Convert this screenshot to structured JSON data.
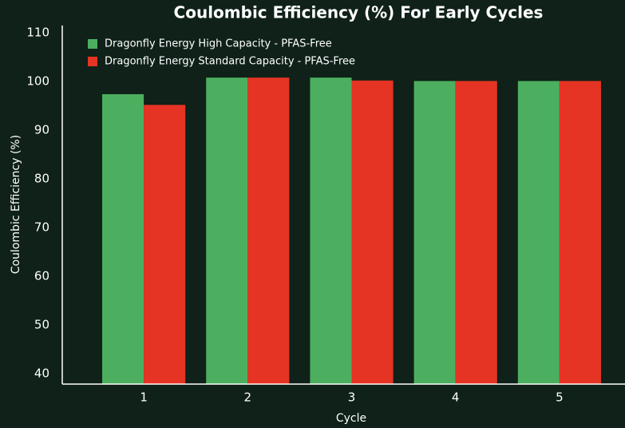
{
  "chart_data": {
    "type": "bar",
    "title": "Coulombic Efficiency (%) For Early Cycles",
    "xlabel": "Cycle",
    "ylabel": "Coulombic Efficiency (%)",
    "categories": [
      "1",
      "2",
      "3",
      "4",
      "5"
    ],
    "series": [
      {
        "name": "Dragonfly Energy High Capacity - PFAS-Free",
        "color": "#4caf5f",
        "values": [
          97.4,
          100.8,
          100.8,
          100.1,
          100.1
        ]
      },
      {
        "name": "Dragonfly Energy Standard Capacity - PFAS-Free",
        "color": "#e53424",
        "values": [
          95.2,
          100.8,
          100.2,
          100.1,
          100.1
        ]
      }
    ],
    "ylim": [
      37.9,
      111.5
    ],
    "yticks": [
      40,
      50,
      60,
      70,
      80,
      90,
      100,
      110
    ],
    "legend": "upper left"
  }
}
